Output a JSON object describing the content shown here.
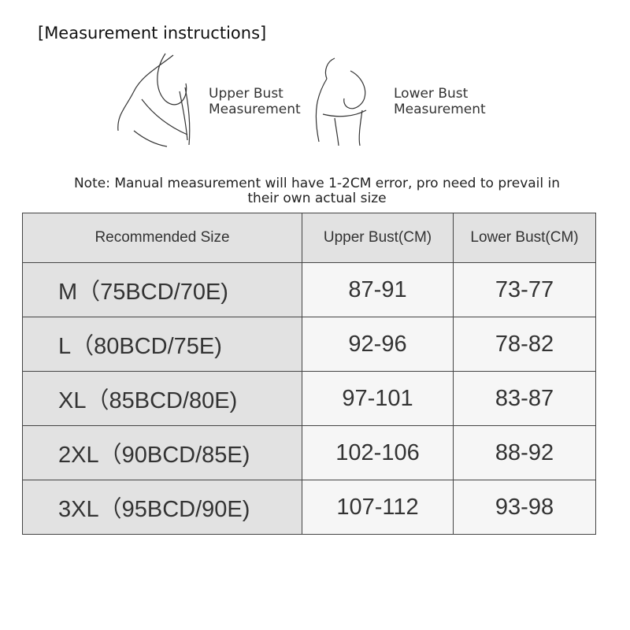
{
  "title": "[Measurement instructions]",
  "figures": [
    {
      "label_line1": "Upper Bust",
      "label_line2": "Measurement",
      "icon": "upper-bust-measurement-illustration"
    },
    {
      "label_line1": "Lower Bust",
      "label_line2": "Measurement",
      "icon": "lower-bust-measurement-illustration"
    }
  ],
  "note_line1": "Note: Manual measurement will have 1-2CM error, pro need to prevail in",
  "note_line2": "their own actual size",
  "table": {
    "headers": [
      "Recommended Size",
      "Upper Bust(CM)",
      "Lower Bust(CM)"
    ],
    "rows": [
      [
        "M（75BCD/70E)",
        "87-91",
        "73-77"
      ],
      [
        "L（80BCD/75E)",
        "92-96",
        "78-82"
      ],
      [
        "XL（85BCD/80E)",
        "97-101",
        "83-87"
      ],
      [
        "2XL（90BCD/85E)",
        "102-106",
        "88-92"
      ],
      [
        "3XL（95BCD/90E)",
        "107-112",
        "93-98"
      ]
    ]
  },
  "colors": {
    "header_bg": "#e2e2e2",
    "cell_bg": "#f6f6f6",
    "border": "#444444"
  }
}
